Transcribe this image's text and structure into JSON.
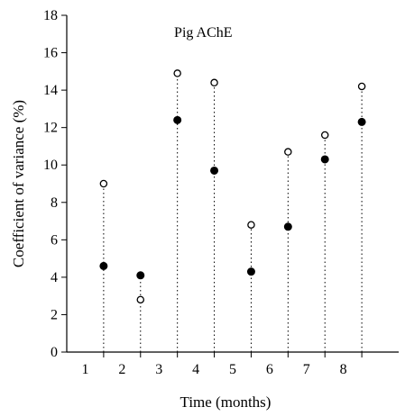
{
  "chart_data": {
    "type": "scatter",
    "title": "Pig AChE",
    "xlabel": "Time (months)",
    "ylabel": "Coefficient of variance (%)",
    "ylim": [
      0,
      18
    ],
    "yticks": [
      0,
      2,
      4,
      6,
      8,
      10,
      12,
      14,
      16,
      18
    ],
    "xlim": [
      0.5,
      9.5
    ],
    "xticks": [
      1,
      2,
      3,
      4,
      5,
      6,
      7,
      8
    ],
    "grid": false,
    "point_x": [
      1.5,
      2.5,
      3.5,
      4.5,
      5.5,
      6.5,
      7.5,
      8.5
    ],
    "series": [
      {
        "marker": "open-circle",
        "values": [
          9.0,
          2.8,
          14.9,
          14.4,
          6.8,
          10.7,
          11.6,
          14.2
        ]
      },
      {
        "marker": "filled-circle",
        "values": [
          4.6,
          4.1,
          12.4,
          9.7,
          4.3,
          6.7,
          10.3,
          12.3
        ]
      }
    ],
    "stems": "dotted vertical line from 0 to the higher value at each x"
  }
}
